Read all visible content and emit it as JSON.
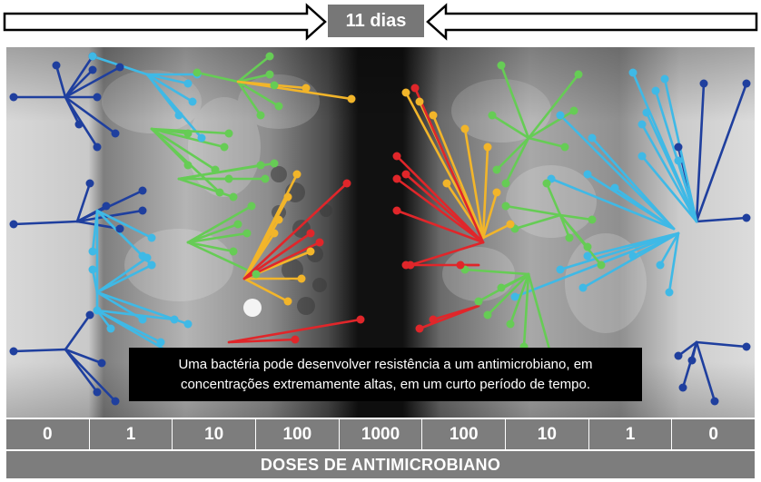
{
  "duration": "11 dias",
  "caption": "Uma bactéria pode desenvolver resistência a um antimicrobiano, em concentrações extremamente altas, em um curto período de tempo.",
  "doses": [
    "0",
    "1",
    "10",
    "100",
    "1000",
    "100",
    "10",
    "1",
    "0"
  ],
  "axis_title": "DOSES DE ANTIMICROBIANO",
  "colors": {
    "dose_0": "#1f3f9e",
    "dose_1": "#3fb9e6",
    "dose_10": "#66cc55",
    "dose_100": "#f2b52a",
    "dose_1000": "#e0262a"
  }
}
